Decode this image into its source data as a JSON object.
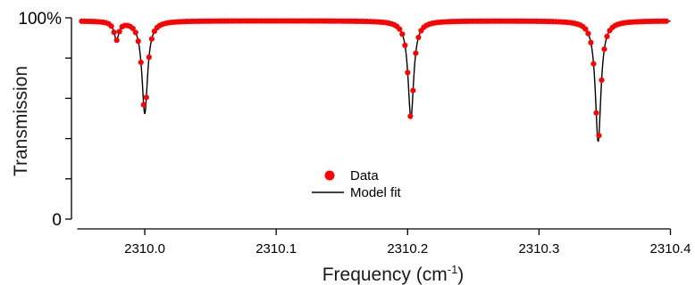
{
  "chart_data": {
    "type": "scatter",
    "xlabel_main": "Frequency (cm",
    "xlabel_sup": "-1",
    "xlabel_close": ")",
    "ylabel": "Transmission",
    "xlim": [
      2309.95,
      2310.4
    ],
    "ylim": [
      0,
      1
    ],
    "x_ticks": [
      "2310.0",
      "2310.1",
      "2310.2",
      "2310.3",
      "2310.4"
    ],
    "x_tick_values": [
      2310.0,
      2310.1,
      2310.2,
      2310.3,
      2310.4
    ],
    "y_tick_values": [
      0,
      0.2,
      0.4,
      0.6,
      0.8,
      1.0
    ],
    "y_tick_labels": [
      "0",
      "",
      "",
      "",
      "",
      "100%"
    ],
    "legend": [
      {
        "label": "Data",
        "marker": "point",
        "color": "#ff0000"
      },
      {
        "label": "Model fit",
        "marker": "line",
        "color": "#000000"
      }
    ],
    "legend_position": "bottom-center",
    "model": {
      "baseline": 0.985,
      "lines": [
        {
          "center": 2310.0,
          "depth": 0.46,
          "gamma": 0.0026
        },
        {
          "center": 2310.2025,
          "depth": 0.485,
          "gamma": 0.0026
        },
        {
          "center": 2310.345,
          "depth": 0.6,
          "gamma": 0.0026
        },
        {
          "center": 2309.9785,
          "depth": 0.09,
          "gamma": 0.0022
        }
      ]
    },
    "data_x_range": [
      2309.952,
      2310.398
    ],
    "data_step": 0.00205,
    "series": [
      {
        "name": "Data",
        "color": "#ff0000",
        "style": "points"
      },
      {
        "name": "Model fit",
        "color": "#000000",
        "style": "line"
      }
    ]
  }
}
